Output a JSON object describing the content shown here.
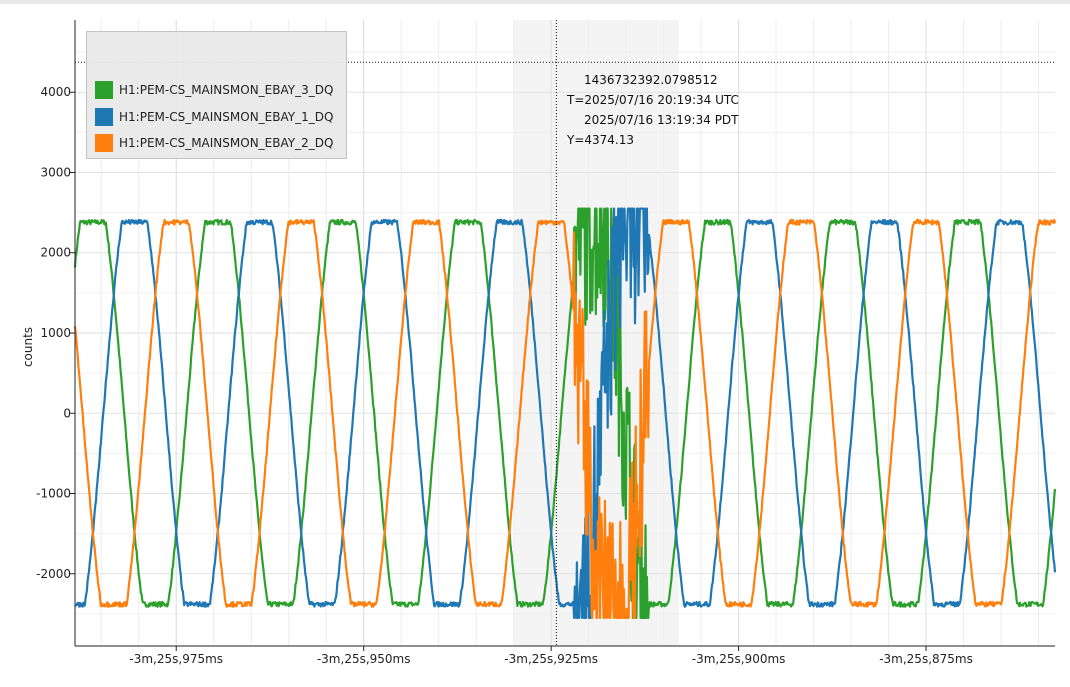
{
  "chart_data": {
    "type": "line",
    "ylabel": "counts",
    "ylim": [
      -2900,
      4900
    ],
    "y_ticks": [
      4000,
      3000,
      2000,
      1000,
      0,
      -1000,
      -2000
    ],
    "y_tick_labels": [
      "4000",
      "3000",
      "2000",
      "1000",
      "0",
      "-1000",
      "-2000"
    ],
    "x_ticks": [
      -85.975,
      -85.95,
      -85.925,
      -85.9,
      -85.875
    ],
    "x_tick_labels": [
      "-3m,25s,975ms",
      "-3m,25s,950ms",
      "-3m,25s,925ms",
      "-3m,25s,900ms",
      "-3m,25s,875ms"
    ],
    "xlim": [
      -85.9885,
      -85.8578
    ],
    "x_unit": "s",
    "grid": true,
    "legend_position": "top-left",
    "series": [
      {
        "name": "H1:PEM-CS_MAINSMON_EBAY_3_DQ",
        "color": "#2ca02c",
        "amplitude": 2380,
        "phase_deg": 150
      },
      {
        "name": "H1:PEM-CS_MAINSMON_EBAY_1_DQ",
        "color": "#1f77b4",
        "amplitude": 2380,
        "phase_deg": 30
      },
      {
        "name": "H1:PEM-CS_MAINSMON_EBAY_2_DQ",
        "color": "#ff7f0e",
        "amplitude": 2380,
        "phase_deg": 270
      }
    ],
    "frequency_hz": 60,
    "disturbance_x": [
      -85.922,
      -85.912
    ],
    "cursor": {
      "x": -85.9243,
      "y": 4374.13,
      "lines": [
        "1436732392.0798512",
        "T=2025/07/16 20:19:34 UTC",
        "2025/07/16 13:19:34 PDT",
        "Y=4374.13"
      ]
    }
  }
}
